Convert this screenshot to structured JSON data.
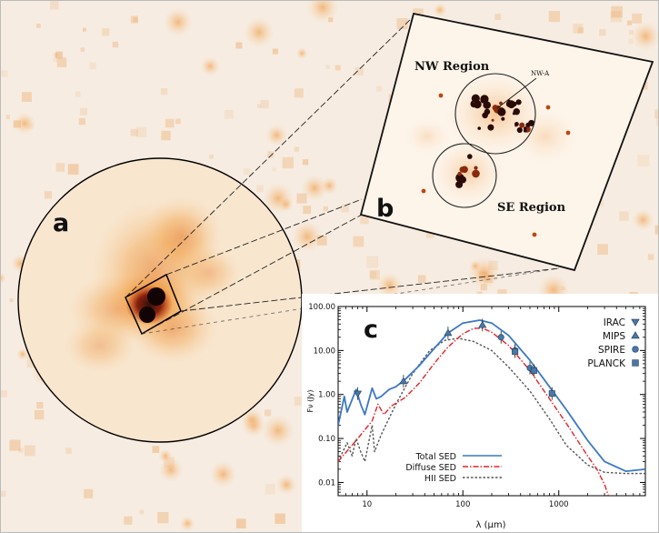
{
  "panels": {
    "a": {
      "label": "a"
    },
    "b": {
      "label": "b",
      "nw_region": "NW Region",
      "se_region": "SE Region",
      "nw_a": "NW-A"
    },
    "c": {
      "label": "c"
    }
  },
  "chart_data": {
    "type": "line",
    "xlabel": "λ (μm)",
    "ylabel": "Fν (Jy)",
    "xscale": "log",
    "yscale": "log",
    "xlim": [
      5,
      8000
    ],
    "ylim": [
      0.005,
      100
    ],
    "x_ticks": [
      {
        "value": 10,
        "label": "10"
      },
      {
        "value": 100,
        "label": "100"
      },
      {
        "value": 1000,
        "label": "1000"
      }
    ],
    "y_ticks": [
      {
        "value": 100,
        "label": "100.00"
      },
      {
        "value": 10,
        "label": "10.00"
      },
      {
        "value": 1,
        "label": "1.00"
      },
      {
        "value": 0.1,
        "label": "0.10"
      },
      {
        "value": 0.01,
        "label": "0.01"
      }
    ],
    "series": [
      {
        "name": "Total SED",
        "color": "#3b78c4",
        "style": "solid",
        "points": [
          [
            5,
            0.2
          ],
          [
            5.8,
            0.9
          ],
          [
            6.2,
            0.4
          ],
          [
            7.7,
            1.3
          ],
          [
            8.6,
            0.6
          ],
          [
            9.5,
            0.35
          ],
          [
            11.3,
            1.4
          ],
          [
            12.5,
            0.8
          ],
          [
            14,
            0.9
          ],
          [
            17,
            1.3
          ],
          [
            20,
            1.5
          ],
          [
            25,
            2.2
          ],
          [
            35,
            4.5
          ],
          [
            50,
            11
          ],
          [
            70,
            25
          ],
          [
            100,
            42
          ],
          [
            150,
            49
          ],
          [
            200,
            42
          ],
          [
            300,
            22
          ],
          [
            500,
            6
          ],
          [
            800,
            1.5
          ],
          [
            1200,
            0.45
          ],
          [
            2000,
            0.09
          ],
          [
            3000,
            0.03
          ],
          [
            5000,
            0.018
          ],
          [
            8000,
            0.02
          ]
        ]
      },
      {
        "name": "Diffuse SED",
        "color": "#e0242a",
        "style": "dashdot",
        "points": [
          [
            5,
            0.03
          ],
          [
            7.7,
            0.09
          ],
          [
            11.3,
            0.25
          ],
          [
            13,
            0.6
          ],
          [
            15,
            0.35
          ],
          [
            18,
            0.55
          ],
          [
            25,
            0.85
          ],
          [
            35,
            1.8
          ],
          [
            50,
            5
          ],
          [
            70,
            12
          ],
          [
            100,
            24
          ],
          [
            130,
            32
          ],
          [
            160,
            32
          ],
          [
            200,
            26
          ],
          [
            300,
            13
          ],
          [
            500,
            3.5
          ],
          [
            800,
            0.8
          ],
          [
            1200,
            0.22
          ],
          [
            2000,
            0.04
          ],
          [
            2500,
            0.02
          ],
          [
            3000,
            0.009
          ],
          [
            3300,
            0.005
          ]
        ]
      },
      {
        "name": "HII SED",
        "color": "#555555",
        "style": "dotted",
        "points": [
          [
            5,
            0.03
          ],
          [
            6.2,
            0.08
          ],
          [
            7,
            0.04
          ],
          [
            7.7,
            0.1
          ],
          [
            8.6,
            0.05
          ],
          [
            9.5,
            0.03
          ],
          [
            11.3,
            0.2
          ],
          [
            12,
            0.05
          ],
          [
            14,
            0.12
          ],
          [
            20,
            0.6
          ],
          [
            30,
            3
          ],
          [
            45,
            10
          ],
          [
            65,
            17
          ],
          [
            90,
            19
          ],
          [
            130,
            16
          ],
          [
            200,
            10
          ],
          [
            300,
            4.2
          ],
          [
            500,
            1.2
          ],
          [
            800,
            0.28
          ],
          [
            1200,
            0.07
          ],
          [
            2000,
            0.025
          ],
          [
            3000,
            0.017
          ],
          [
            5000,
            0.016
          ],
          [
            8000,
            0.016
          ]
        ]
      }
    ],
    "observations": [
      {
        "name": "IRAC",
        "marker": "triangle-down",
        "points": [
          [
            8,
            1.05
          ]
        ]
      },
      {
        "name": "MIPS",
        "marker": "triangle-up",
        "points": [
          [
            24,
            2
          ],
          [
            70,
            25
          ],
          [
            160,
            38
          ]
        ]
      },
      {
        "name": "SPIRE",
        "marker": "circle",
        "points": [
          [
            250,
            20
          ],
          [
            350,
            10
          ],
          [
            500,
            4
          ]
        ]
      },
      {
        "name": "PLANCK",
        "marker": "square",
        "points": [
          [
            350,
            9.5
          ],
          [
            550,
            3.5
          ],
          [
            850,
            1.05
          ]
        ]
      }
    ]
  },
  "colors": {
    "background": "#f6ece1",
    "emission_light": "#f4b15b",
    "emission_mid": "#e4781e",
    "emission_core": "#180504",
    "marker": "#4a78a8"
  }
}
